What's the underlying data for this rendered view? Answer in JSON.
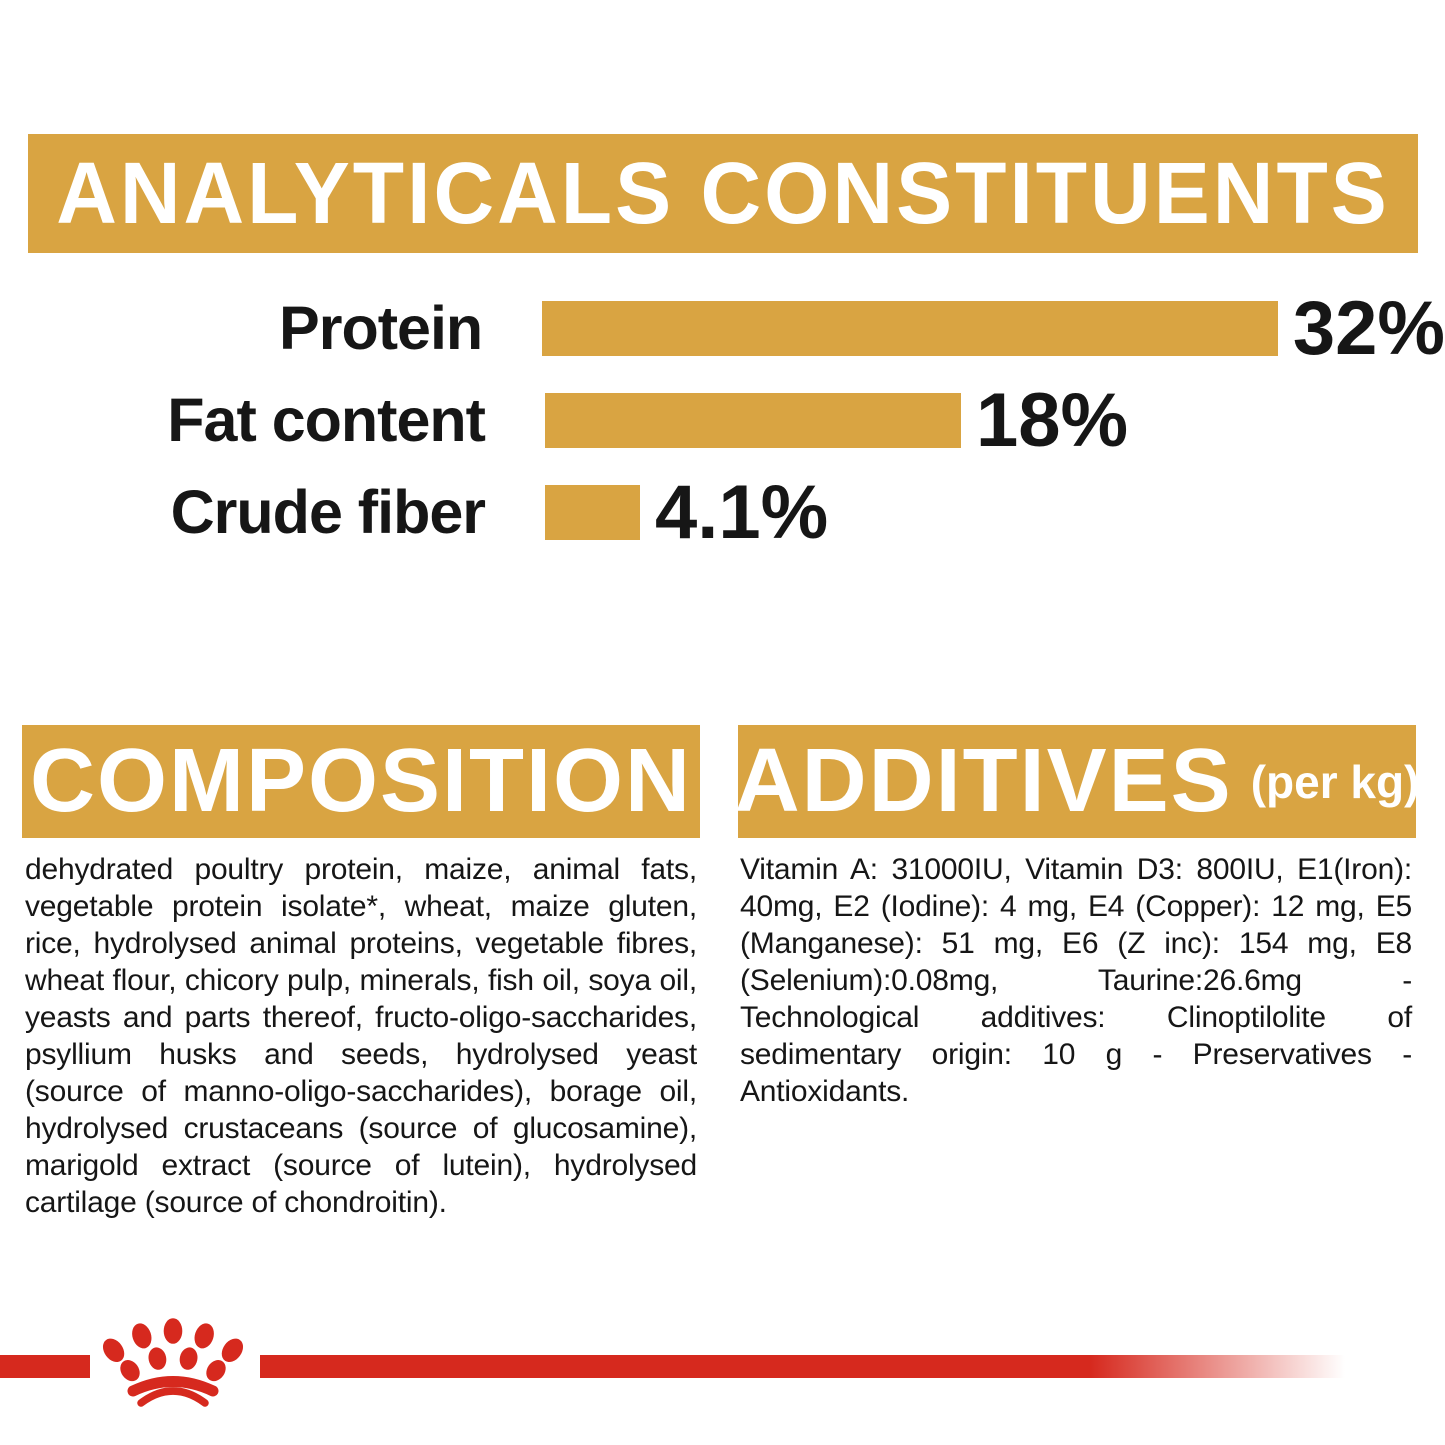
{
  "colors": {
    "gold": "#D9A442",
    "red": "#D6291E",
    "text": "#161616",
    "band_text": "#FFFFFF",
    "background": "#FFFFFF"
  },
  "analyticals": {
    "title": "ANALYTICALS CONSTITUENTS"
  },
  "chart_data": {
    "type": "bar",
    "orientation": "horizontal",
    "title": "ANALYTICALS CONSTITUENTS",
    "categories": [
      "Protein",
      "Fat content",
      "Crude fiber"
    ],
    "values": [
      32,
      18,
      4.1
    ],
    "value_labels": [
      "32%",
      "18%",
      "4.1%"
    ],
    "unit": "%",
    "xlim": [
      0,
      32
    ],
    "bar_color": "#D9A442",
    "grid": false,
    "legend": false
  },
  "composition": {
    "title": "COMPOSITION",
    "body": "dehydrated poultry protein, maize, animal fats, vegetable protein isolate*, wheat, maize gluten, rice, hydrolysed animal proteins, vegetable fibres, wheat flour, chicory pulp, minerals, fish oil, soya oil, yeasts and parts thereof, fructo-oligo-saccharides, psyllium husks and seeds, hydrolysed yeast (source of manno-oligo-saccharides), borage oil, hydrolysed crustaceans (source of glucosamine), marigold extract (source of lutein), hydrolysed cartilage (source of chondroitin)."
  },
  "additives": {
    "title": "ADDITIVES",
    "title_suffix": "(per kg)",
    "body": "Vitamin A: 31000IU, Vitamin D3: 800IU, E1(Iron): 40mg, E2 (Iodine): 4 mg, E4 (Copper): 12 mg, E5 (Manganese): 51 mg, E6 (Z inc): 154 mg, E8 (Selenium):0.08mg, Taurine:26.6mg - Technological additives: Clinoptilolite of sedimentary origin: 10 g - Preservatives -Antioxidants."
  },
  "footer": {
    "logo": "royal-canin-crown"
  }
}
